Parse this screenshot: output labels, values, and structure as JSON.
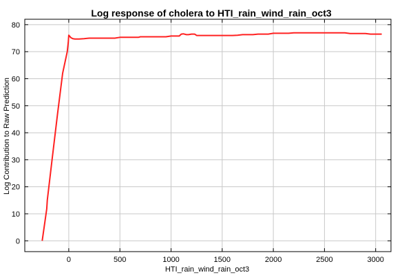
{
  "chart_data": {
    "type": "line",
    "title": "Log response of cholera to HTI_rain_wind_rain_oct3",
    "xlabel": "HTI_rain_wind_rain_oct3",
    "ylabel": "Log Contribution to Raw Prediction",
    "xlim": [
      -430,
      3150
    ],
    "ylim": [
      -4,
      82
    ],
    "xticks": [
      0,
      500,
      1000,
      1500,
      2000,
      2500,
      3000
    ],
    "yticks": [
      0,
      10,
      20,
      30,
      40,
      50,
      60,
      70,
      80
    ],
    "grid": true,
    "series": [
      {
        "color": "#ff2020",
        "x": [
          -260,
          -215,
          -210,
          -160,
          -110,
          -60,
          -15,
          -5,
          0,
          20,
          40,
          60,
          100,
          150,
          200,
          300,
          450,
          500,
          600,
          680,
          700,
          800,
          900,
          950,
          1000,
          1080,
          1100,
          1120,
          1150,
          1170,
          1200,
          1230,
          1250,
          1300,
          1400,
          1500,
          1600,
          1650,
          1700,
          1800,
          1850,
          1900,
          1950,
          2000,
          2100,
          2150,
          2200,
          2300,
          2400,
          2500,
          2600,
          2700,
          2750,
          2800,
          2900,
          2950,
          3000,
          3060
        ],
        "y": [
          0,
          11.8,
          15,
          31,
          47,
          62,
          70,
          73.5,
          76.1,
          75.2,
          74.8,
          74.7,
          74.7,
          74.8,
          75.0,
          75.0,
          75.0,
          75.3,
          75.3,
          75.3,
          75.5,
          75.5,
          75.5,
          75.5,
          75.8,
          75.8,
          76.5,
          76.6,
          76.3,
          76.3,
          76.5,
          76.5,
          76.0,
          76.0,
          76.0,
          76.0,
          76.0,
          76.1,
          76.3,
          76.3,
          76.5,
          76.5,
          76.5,
          76.8,
          76.8,
          76.8,
          77.0,
          77.0,
          77.0,
          77.0,
          77.0,
          77.0,
          76.7,
          76.7,
          76.7,
          76.5,
          76.5,
          76.5
        ]
      }
    ]
  }
}
